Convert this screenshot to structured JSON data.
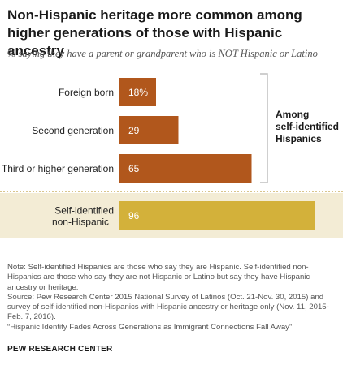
{
  "header": {
    "title": "Non-Hispanic heritage more common among higher generations of those with Hispanic ancestry",
    "subtitle": "% saying they have a parent or grandparent who is NOT Hispanic or Latino"
  },
  "chart_data": {
    "type": "bar",
    "orientation": "horizontal",
    "categories": [
      "Foreign born",
      "Second generation",
      "Third or higher generation",
      "Self-identified non-Hispanic"
    ],
    "values": [
      18,
      29,
      65,
      96
    ],
    "value_labels": [
      "18%",
      "29",
      "65",
      "96"
    ],
    "groups": [
      {
        "label_lines": [
          "Among",
          "self-identified",
          "Hispanics"
        ],
        "categories": [
          "Foreign born",
          "Second generation",
          "Third or higher generation"
        ]
      }
    ],
    "xlim": [
      0,
      100
    ],
    "grid": false,
    "legend": "none",
    "colors": {
      "hispanic_bars": "#b1571c",
      "non_hispanic_bar": "#d3b13a",
      "highlight_band": "#f3ecd5",
      "bracket": "#bfbfbf",
      "divider": "#d9c58c"
    }
  },
  "notes": {
    "note": "Note: Self-identified Hispanics are those who say they are Hispanic. Self-identified non-Hispanics are those who say they are not Hispanic or Latino but say they have Hispanic ancestry or heritage.",
    "source": "Source: Pew Research Center 2015 National Survey of Latinos (Oct. 21-Nov. 30, 2015) and survey of self-identified non-Hispanics with Hispanic ancestry or heritage only (Nov. 11, 2015-Feb. 7, 2016).",
    "report": "“Hispanic Identity Fades Across Generations as Immigrant Connections Fall Away”"
  },
  "footer": {
    "brand": "PEW RESEARCH CENTER"
  }
}
